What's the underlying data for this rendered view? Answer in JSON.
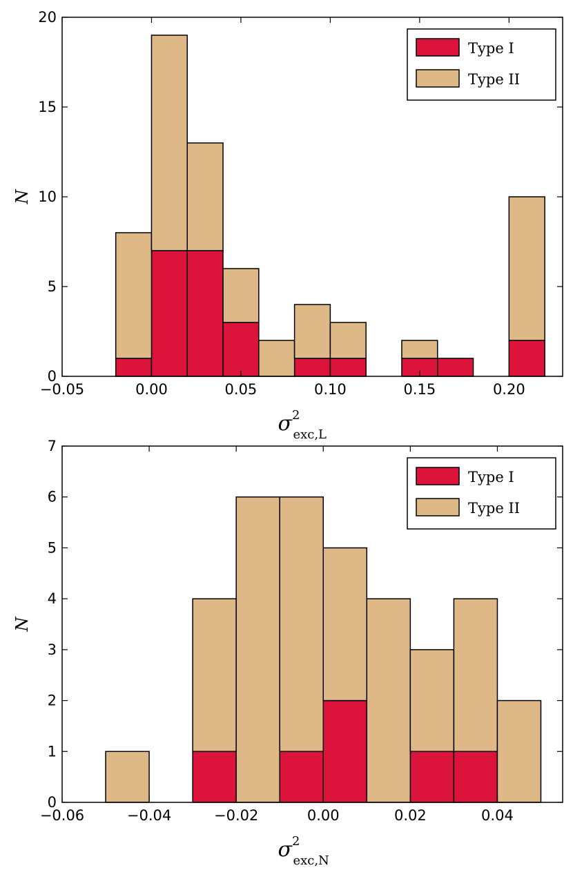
{
  "chart_data": [
    {
      "type": "histogram",
      "bins": [
        -0.02,
        0.0,
        0.02,
        0.04,
        0.06,
        0.08,
        0.1,
        0.12,
        0.14,
        0.16,
        0.18,
        0.2,
        0.22
      ],
      "series": [
        {
          "name": "Type I",
          "color": "#dc143c",
          "values": [
            1,
            7,
            7,
            3,
            0,
            1,
            1,
            0,
            1,
            1,
            0,
            2
          ]
        },
        {
          "name": "Type II",
          "color": "#deb887",
          "values": [
            7,
            12,
            6,
            3,
            2,
            3,
            2,
            0,
            1,
            0,
            0,
            8
          ]
        }
      ],
      "stacked": true,
      "xlim": [
        -0.05,
        0.23
      ],
      "xticks": [
        {
          "value": -0.05,
          "label": "−0.05"
        },
        {
          "value": 0.0,
          "label": "0.00"
        },
        {
          "value": 0.05,
          "label": "0.05"
        },
        {
          "value": 0.1,
          "label": "0.10"
        },
        {
          "value": 0.15,
          "label": "0.15"
        },
        {
          "value": 0.2,
          "label": "0.20"
        }
      ],
      "ylim": [
        0,
        20
      ],
      "yticks": [
        0,
        5,
        10,
        15,
        20
      ],
      "ylabel": "N",
      "xlabel": {
        "symbol": "σ",
        "sup": "2",
        "sub": "exc,L"
      },
      "legend": "upper right"
    },
    {
      "type": "histogram",
      "bins": [
        -0.05,
        -0.04,
        -0.03,
        -0.02,
        -0.01,
        0.0,
        0.01,
        0.02,
        0.03,
        0.04,
        0.05
      ],
      "series": [
        {
          "name": "Type I",
          "color": "#dc143c",
          "values": [
            0,
            0,
            1,
            0,
            1,
            2,
            0,
            1,
            1,
            0
          ]
        },
        {
          "name": "Type II",
          "color": "#deb887",
          "values": [
            1,
            0,
            3,
            6,
            5,
            3,
            4,
            2,
            3,
            2
          ]
        }
      ],
      "stacked": true,
      "xlim": [
        -0.06,
        0.055
      ],
      "xticks": [
        {
          "value": -0.06,
          "label": "−0.06"
        },
        {
          "value": -0.04,
          "label": "−0.04"
        },
        {
          "value": -0.02,
          "label": "−0.02"
        },
        {
          "value": 0.0,
          "label": "0.00"
        },
        {
          "value": 0.02,
          "label": "0.02"
        },
        {
          "value": 0.04,
          "label": "0.04"
        }
      ],
      "ylim": [
        0,
        7
      ],
      "yticks": [
        0,
        1,
        2,
        3,
        4,
        5,
        6,
        7
      ],
      "ylabel": "N",
      "xlabel": {
        "symbol": "σ",
        "sup": "2",
        "sub": "exc,N"
      },
      "legend": "upper right"
    }
  ]
}
